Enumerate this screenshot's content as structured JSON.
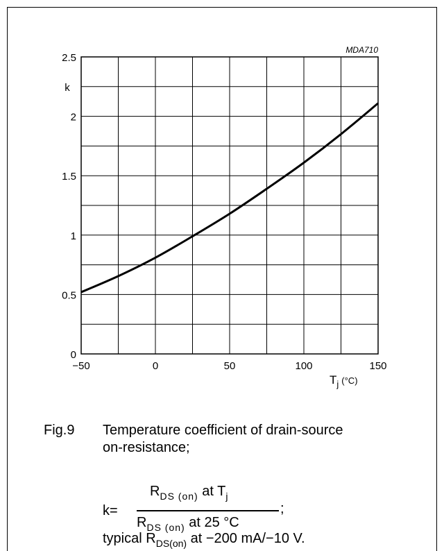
{
  "chart_data": {
    "type": "line",
    "code": "MDA710",
    "ylabel": "k",
    "xlabel_main": "T",
    "xlabel_sub": "j",
    "xlabel_unit": "(°C)",
    "xlim": [
      -50,
      150
    ],
    "ylim": [
      0,
      2.5
    ],
    "x_ticks": [
      "−50",
      "0",
      "50",
      "100",
      "150"
    ],
    "y_ticks": [
      "0",
      "0.5",
      "1",
      "1.5",
      "2",
      "2.5"
    ],
    "grid": true,
    "series": [
      {
        "x": [
          -50,
          -25,
          0,
          25,
          50,
          75,
          100,
          125,
          150
        ],
        "values": [
          0.52,
          0.655,
          0.81,
          0.99,
          1.18,
          1.39,
          1.61,
          1.85,
          2.11
        ]
      }
    ]
  },
  "caption": {
    "fig_no": "Fig.9",
    "line1": "Temperature coefficient of drain-source",
    "line2": "on-resistance;",
    "formula": {
      "k_label": "k=",
      "num_R": "R",
      "num_sub": "DS (on)",
      "num_text": "at T",
      "num_text_sub": "j",
      "den_R": "R",
      "den_sub": "DS (on)",
      "den_text": "at 25 °C",
      "suffix": ";"
    },
    "typical_prefix": "typical R",
    "typical_sub": "DS(on)",
    "typical_suffix": "at −200 mA/−10 V."
  }
}
